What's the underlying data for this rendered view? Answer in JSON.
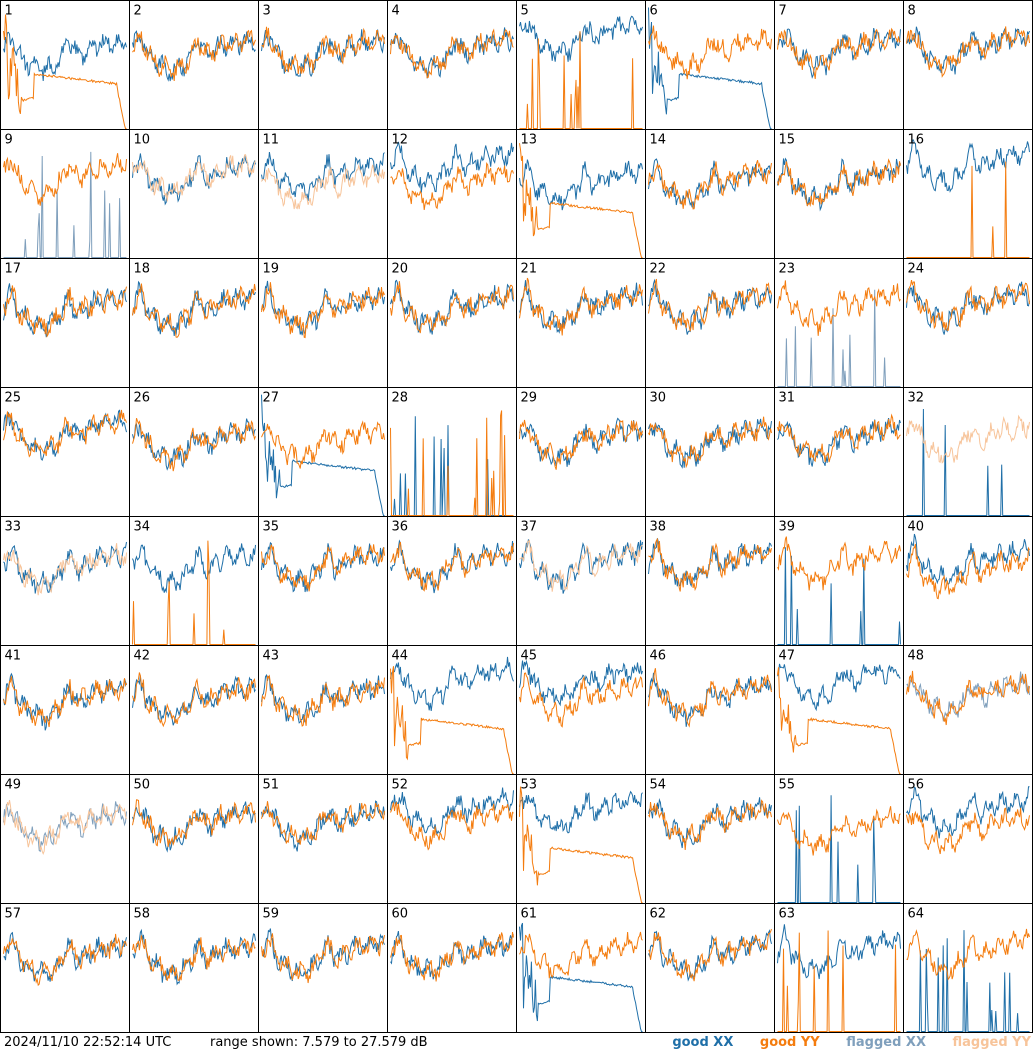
{
  "chart_data": {
    "type": "line",
    "panels": [
      "1",
      "2",
      "3",
      "4",
      "5",
      "6",
      "7",
      "8",
      "9",
      "10",
      "11",
      "12",
      "13",
      "14",
      "15",
      "16",
      "17",
      "18",
      "19",
      "20",
      "21",
      "22",
      "23",
      "24",
      "25",
      "26",
      "27",
      "28",
      "29",
      "30",
      "31",
      "32",
      "33",
      "34",
      "35",
      "36",
      "37",
      "38",
      "39",
      "40",
      "41",
      "42",
      "43",
      "44",
      "45",
      "46",
      "47",
      "48",
      "49",
      "50",
      "51",
      "52",
      "53",
      "54",
      "55",
      "56",
      "57",
      "58",
      "59",
      "60",
      "61",
      "62",
      "63",
      "64"
    ],
    "grid": {
      "rows": 8,
      "cols": 8
    },
    "timestamp": "2024/11/10 22:52:14 UTC",
    "range_text": "range shown: 7.579 to 27.579 dB",
    "ylim": [
      7.579,
      27.579
    ],
    "legend": [
      {
        "name": "good XX",
        "color": "#1f6fa8"
      },
      {
        "name": "good YY",
        "color": "#f47c0e"
      },
      {
        "name": "flagged XX",
        "color": "#7f9fbc"
      },
      {
        "name": "flagged YY",
        "color": "#f7c49a"
      }
    ],
    "panel_styles": {
      "flagged_yy": [
        "10",
        "11",
        "32",
        "33",
        "37",
        "49"
      ],
      "flagged_xx": [
        "9",
        "23",
        "48",
        "49"
      ],
      "yy_spiky": [
        "5",
        "16",
        "28",
        "34",
        "63"
      ],
      "xx_spiky": [
        "9",
        "23",
        "28",
        "32",
        "39",
        "55",
        "64"
      ],
      "xx_decay": [
        "6",
        "27",
        "61"
      ],
      "yy_decay": [
        "1",
        "13",
        "44",
        "47",
        "53"
      ],
      "xx_divergent": [
        "5",
        "12",
        "16",
        "44",
        "45",
        "47",
        "52",
        "53",
        "56",
        "61",
        "64"
      ]
    }
  }
}
